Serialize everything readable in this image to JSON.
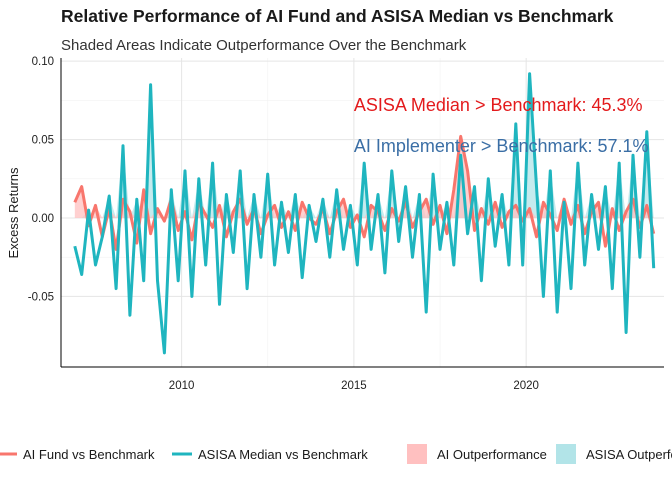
{
  "chart_data": {
    "type": "line",
    "title": "Relative Performance of AI Fund and ASISA Median vs Benchmark",
    "subtitle": "Shaded Areas Indicate Outperformance Over the Benchmark",
    "xlabel": "",
    "ylabel": "Excess Returns",
    "xlim": [
      2006.5,
      2024.0
    ],
    "ylim": [
      -0.095,
      0.102
    ],
    "x_ticks": [
      2010,
      2015,
      2020
    ],
    "x_tick_labels": [
      "2010",
      "2015",
      "2020"
    ],
    "y_ticks": [
      -0.05,
      0.0,
      0.05,
      0.1
    ],
    "y_tick_labels": [
      "-0.05",
      "0.00",
      "0.05",
      "0.10"
    ],
    "grid": true,
    "legend_position": "bottom",
    "annotations": [
      {
        "text": "ASISA Median > Benchmark: 45.3%",
        "x": 2015.0,
        "y": 0.072,
        "color": "#e31a1c"
      },
      {
        "text": "AI Implementer > Benchmark: 57.1%",
        "x": 2015.0,
        "y": 0.046,
        "color": "#3a6ea5"
      }
    ],
    "series": [
      {
        "name": "AI Fund vs Benchmark",
        "color": "#f8766d",
        "fill_name": "AI Outperformance",
        "fill_color": "#ffc0c0",
        "x": [
          2006.9,
          2007.1,
          2007.3,
          2007.5,
          2007.7,
          2007.9,
          2008.1,
          2008.3,
          2008.5,
          2008.7,
          2008.9,
          2009.1,
          2009.3,
          2009.5,
          2009.7,
          2009.9,
          2010.1,
          2010.3,
          2010.5,
          2010.7,
          2010.9,
          2011.1,
          2011.3,
          2011.5,
          2011.7,
          2011.9,
          2012.1,
          2012.3,
          2012.5,
          2012.7,
          2012.9,
          2013.1,
          2013.3,
          2013.5,
          2013.7,
          2013.9,
          2014.1,
          2014.3,
          2014.5,
          2014.7,
          2014.9,
          2015.1,
          2015.3,
          2015.5,
          2015.7,
          2015.9,
          2016.1,
          2016.3,
          2016.5,
          2016.7,
          2016.9,
          2017.1,
          2017.3,
          2017.5,
          2017.7,
          2017.9,
          2018.1,
          2018.3,
          2018.5,
          2018.7,
          2018.9,
          2019.1,
          2019.3,
          2019.5,
          2019.7,
          2019.9,
          2020.1,
          2020.3,
          2020.5,
          2020.7,
          2020.9,
          2021.1,
          2021.3,
          2021.5,
          2021.7,
          2021.9,
          2022.1,
          2022.3,
          2022.5,
          2022.7,
          2022.9,
          2023.1,
          2023.3,
          2023.5,
          2023.7
        ],
        "values": [
          0.01,
          0.02,
          -0.005,
          0.008,
          -0.012,
          0.006,
          -0.02,
          0.012,
          0.004,
          -0.016,
          0.018,
          -0.01,
          0.006,
          -0.002,
          0.012,
          -0.008,
          0.004,
          -0.014,
          0.01,
          0.002,
          -0.006,
          0.008,
          -0.012,
          0.004,
          0.012,
          -0.004,
          0.006,
          -0.01,
          0.002,
          0.008,
          -0.006,
          0.004,
          -0.008,
          0.01,
          0.0,
          -0.004,
          0.006,
          -0.01,
          0.004,
          0.012,
          -0.006,
          0.002,
          -0.012,
          0.008,
          0.004,
          -0.008,
          0.006,
          -0.002,
          0.01,
          -0.006,
          0.004,
          0.012,
          -0.004,
          0.008,
          -0.01,
          0.018,
          0.052,
          0.03,
          -0.008,
          0.006,
          -0.004,
          0.01,
          -0.006,
          0.004,
          0.008,
          -0.002,
          0.006,
          -0.012,
          0.01,
          0.002,
          -0.008,
          0.012,
          -0.004,
          0.008,
          -0.01,
          0.004,
          0.01,
          -0.018,
          0.006,
          -0.008,
          0.004,
          0.012,
          -0.006,
          0.008,
          -0.01
        ]
      },
      {
        "name": "ASISA Median vs Benchmark",
        "color": "#1fb5bf",
        "fill_name": "ASISA Outperformance",
        "fill_color": "#b2e4e8",
        "x": [
          2006.9,
          2007.1,
          2007.3,
          2007.5,
          2007.7,
          2007.9,
          2008.1,
          2008.3,
          2008.5,
          2008.7,
          2008.9,
          2009.1,
          2009.3,
          2009.5,
          2009.7,
          2009.9,
          2010.1,
          2010.3,
          2010.5,
          2010.7,
          2010.9,
          2011.1,
          2011.3,
          2011.5,
          2011.7,
          2011.9,
          2012.1,
          2012.3,
          2012.5,
          2012.7,
          2012.9,
          2013.1,
          2013.3,
          2013.5,
          2013.7,
          2013.9,
          2014.1,
          2014.3,
          2014.5,
          2014.7,
          2014.9,
          2015.1,
          2015.3,
          2015.5,
          2015.7,
          2015.9,
          2016.1,
          2016.3,
          2016.5,
          2016.7,
          2016.9,
          2017.1,
          2017.3,
          2017.5,
          2017.7,
          2017.9,
          2018.1,
          2018.3,
          2018.5,
          2018.7,
          2018.9,
          2019.1,
          2019.3,
          2019.5,
          2019.7,
          2019.9,
          2020.1,
          2020.3,
          2020.5,
          2020.7,
          2020.9,
          2021.1,
          2021.3,
          2021.5,
          2021.7,
          2021.9,
          2022.1,
          2022.3,
          2022.5,
          2022.7,
          2022.9,
          2023.1,
          2023.3,
          2023.5,
          2023.7
        ],
        "values": [
          -0.018,
          -0.036,
          0.005,
          -0.03,
          -0.012,
          0.014,
          -0.045,
          0.046,
          -0.062,
          0.012,
          -0.04,
          0.085,
          -0.04,
          -0.086,
          0.018,
          -0.04,
          0.03,
          -0.05,
          0.025,
          -0.03,
          0.035,
          -0.055,
          0.015,
          -0.022,
          0.03,
          -0.045,
          0.015,
          -0.025,
          0.028,
          -0.03,
          0.01,
          -0.022,
          0.015,
          -0.038,
          0.008,
          -0.015,
          0.012,
          -0.025,
          0.018,
          -0.02,
          0.008,
          -0.03,
          0.035,
          -0.02,
          0.015,
          -0.035,
          0.03,
          -0.015,
          0.02,
          -0.025,
          0.015,
          -0.06,
          0.028,
          -0.02,
          0.01,
          -0.03,
          0.04,
          -0.01,
          0.02,
          -0.04,
          0.025,
          -0.018,
          0.015,
          -0.03,
          0.06,
          -0.03,
          0.092,
          0.02,
          -0.05,
          0.03,
          -0.06,
          0.01,
          -0.045,
          0.035,
          -0.03,
          0.015,
          -0.02,
          0.02,
          -0.045,
          0.035,
          -0.073,
          0.04,
          -0.025,
          0.055,
          -0.032
        ]
      }
    ]
  }
}
